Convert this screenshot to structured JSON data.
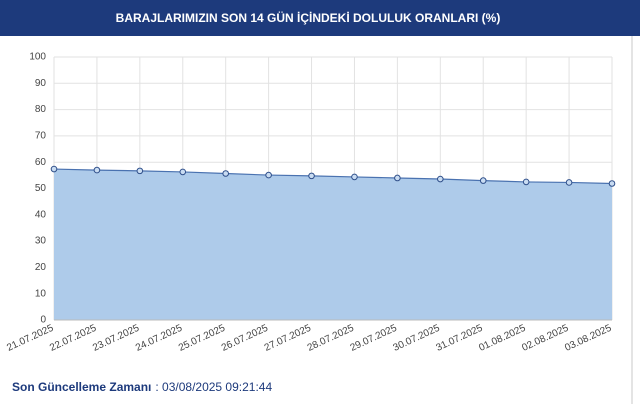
{
  "chart_data": {
    "type": "area",
    "title": "BARAJLARIMIZIN SON 14 GÜN İÇİNDEKİ DOLULUK ORANLARI (%)",
    "categories": [
      "21.07.2025",
      "22.07.2025",
      "23.07.2025",
      "24.07.2025",
      "25.07.2025",
      "26.07.2025",
      "27.07.2025",
      "28.07.2025",
      "29.07.2025",
      "30.07.2025",
      "31.07.2025",
      "01.08.2025",
      "02.08.2025",
      "03.08.2025"
    ],
    "values": [
      57.4,
      57.0,
      56.7,
      56.3,
      55.7,
      55.1,
      54.8,
      54.4,
      54.0,
      53.6,
      53.0,
      52.5,
      52.3,
      51.9
    ],
    "color": "#4a72b0",
    "fill": "#aecbea",
    "ylim": [
      0,
      100
    ],
    "yticks": [
      0,
      10,
      20,
      30,
      40,
      50,
      60,
      70,
      80,
      90,
      100
    ],
    "grid": true
  },
  "footer": {
    "label": "Son Güncelleme Zamanı",
    "value": ": 03/08/2025 09:21:44"
  }
}
